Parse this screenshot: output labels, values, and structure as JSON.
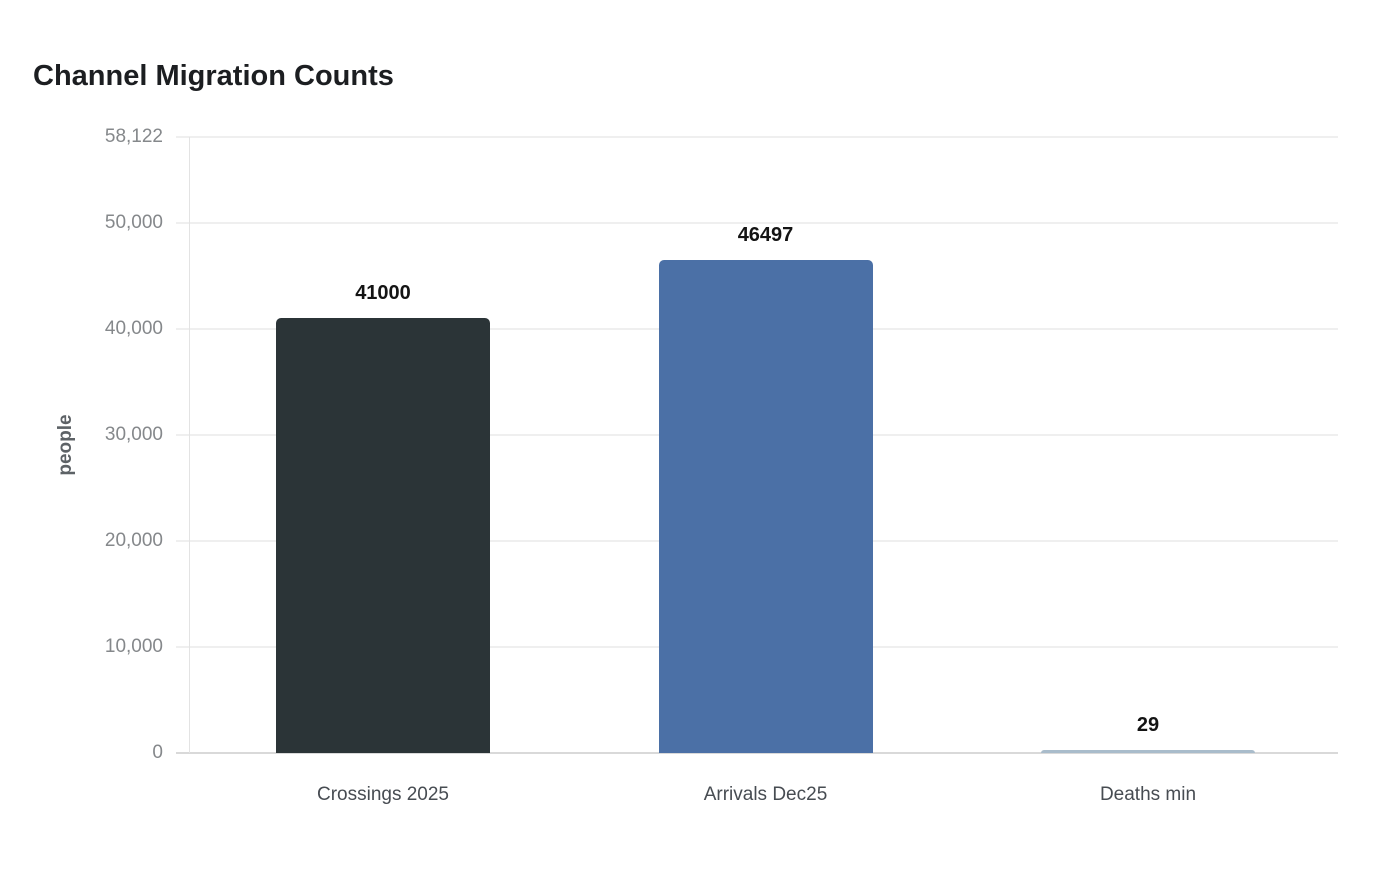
{
  "page": {
    "background": "#ffffff"
  },
  "chart_data": {
    "type": "bar",
    "title": "Channel Migration Counts",
    "xlabel": "",
    "ylabel": "people",
    "categories": [
      "Crossings 2025",
      "Arrivals Dec25",
      "Deaths min"
    ],
    "values": [
      41000,
      46497,
      29
    ],
    "value_labels": [
      "41000",
      "46497",
      "29"
    ],
    "bar_colors": [
      "#2b3437",
      "#4b70a6",
      "#a9bccb"
    ],
    "ylim": [
      0,
      58122
    ],
    "yticks": [
      {
        "value": 0,
        "label": "0"
      },
      {
        "value": 10000,
        "label": "10,000"
      },
      {
        "value": 20000,
        "label": "20,000"
      },
      {
        "value": 30000,
        "label": "30,000"
      },
      {
        "value": 40000,
        "label": "40,000"
      },
      {
        "value": 50000,
        "label": "50,000"
      },
      {
        "value": 58122,
        "label": "58,122"
      }
    ],
    "grid": "horizontal",
    "legend": "none",
    "colors": {
      "title": "#1c1e21",
      "tick_label": "#85888b",
      "category_label": "#474c52",
      "value_label": "#141414",
      "axis_title": "#5d6266",
      "gridline": "#efefef",
      "axis_line": "#d9d9d9",
      "plot_border": "#e3e3e3"
    }
  }
}
